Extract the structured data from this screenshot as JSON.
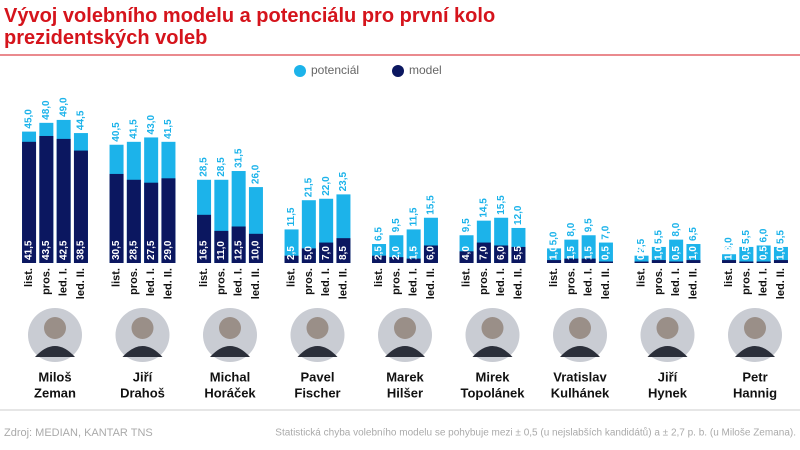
{
  "chart_data": {
    "type": "overlap-bar",
    "title": [
      "Vývoj volebního modelu a potenciálu pro první kolo",
      "prezidentských voleb"
    ],
    "periods": [
      "list.",
      "pros.",
      "led. I.",
      "led. II."
    ],
    "candidates": [
      [
        "Miloš",
        "Zeman"
      ],
      [
        "Jiří",
        "Drahoš"
      ],
      [
        "Michal",
        "Horáček"
      ],
      [
        "Pavel",
        "Fischer"
      ],
      [
        "Marek",
        "Hilšer"
      ],
      [
        "Mirek",
        "Topolánek"
      ],
      [
        "Vratislav",
        "Kulhánek"
      ],
      [
        "Jiří",
        "Hynek"
      ],
      [
        "Petr",
        "Hannig"
      ]
    ],
    "series": [
      {
        "name": "potenciál",
        "color": "#1cb3ea",
        "values": [
          [
            45.0,
            48.0,
            49.0,
            44.5
          ],
          [
            40.5,
            41.5,
            43.0,
            41.5
          ],
          [
            28.5,
            28.5,
            31.5,
            26.0
          ],
          [
            11.5,
            21.5,
            22.0,
            23.5
          ],
          [
            6.5,
            9.5,
            11.5,
            15.5
          ],
          [
            9.5,
            14.5,
            15.5,
            12.0
          ],
          [
            5.0,
            8.0,
            9.5,
            7.0
          ],
          [
            2.5,
            5.5,
            8.0,
            6.5
          ],
          [
            3.0,
            5.5,
            6.0,
            5.5
          ]
        ],
        "value_labels": [
          [
            "45,0",
            "48,0",
            "49,0",
            "44,5"
          ],
          [
            "40,5",
            "41,5",
            "43,0",
            "41,5"
          ],
          [
            "28,5",
            "28,5",
            "31,5",
            "26,0"
          ],
          [
            "11,5",
            "21,5",
            "22,0",
            "23,5"
          ],
          [
            "6,5",
            "9,5",
            "11,5",
            "15,5"
          ],
          [
            "9,5",
            "14,5",
            "15,5",
            "12,0"
          ],
          [
            "5,0",
            "8,0",
            "9,5",
            "7,0"
          ],
          [
            "2,5",
            "5,5",
            "8,0",
            "6,5"
          ],
          [
            "3,0",
            "5,5",
            "6,0",
            "5,5"
          ]
        ]
      },
      {
        "name": "model",
        "color": "#0b1760",
        "values": [
          [
            41.5,
            43.5,
            42.5,
            38.5
          ],
          [
            30.5,
            28.5,
            27.5,
            29.0
          ],
          [
            16.5,
            11.0,
            12.5,
            10.0
          ],
          [
            2.5,
            5.0,
            7.0,
            8.5
          ],
          [
            2.5,
            2.0,
            1.5,
            6.0
          ],
          [
            4.0,
            7.0,
            6.0,
            5.5
          ],
          [
            1.0,
            1.5,
            1.5,
            0.5
          ],
          [
            0.5,
            1.0,
            0.5,
            1.0
          ],
          [
            1.0,
            0.5,
            0.5,
            1.0
          ]
        ],
        "value_labels": [
          [
            "41,5",
            "43,5",
            "42,5",
            "38,5"
          ],
          [
            "30,5",
            "28,5",
            "27,5",
            "29,0"
          ],
          [
            "16,5",
            "11,0",
            "12,5",
            "10,0"
          ],
          [
            "2,5",
            "5,0",
            "7,0",
            "8,5"
          ],
          [
            "2,5",
            "2,0",
            "1,5",
            "6,0"
          ],
          [
            "4,0",
            "7,0",
            "6,0",
            "5,5"
          ],
          [
            "1,0",
            "1,5",
            "1,5",
            "0,5"
          ],
          [
            "0,5",
            "1,0",
            "0,5",
            "1,0"
          ],
          [
            "1,0",
            "0,5",
            "0,5",
            "1,0"
          ]
        ]
      }
    ],
    "source": "Zdroj: MEDIAN, KANTAR TNS",
    "note": "Statistická chyba volebního modelu se pohybuje mezi ± 0,5 (u nejslabších kandidátů) a ± 2,7 p. b. (u Miloše Zemana)."
  }
}
